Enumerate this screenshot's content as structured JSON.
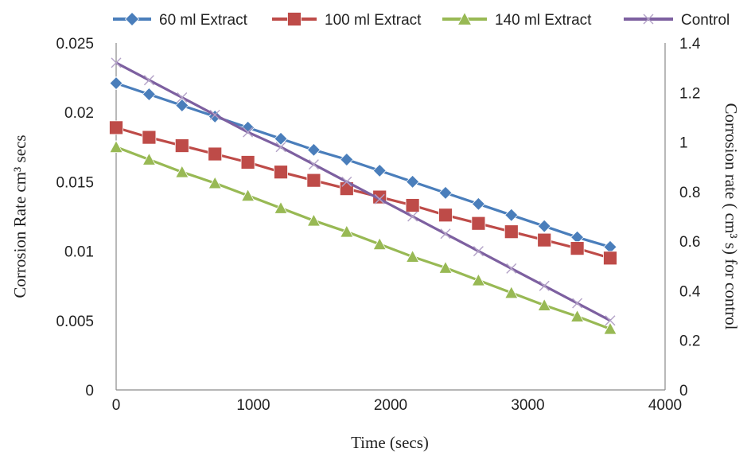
{
  "chart_data": {
    "type": "line",
    "title": "",
    "xlabel": "Time (secs)",
    "ylabel": "Corrosion Rate cm³ secs",
    "y2label": "Corrosion rate ( cm³  s)  for control",
    "xlim": [
      0,
      4000
    ],
    "ylim": [
      0,
      0.025
    ],
    "y2lim": [
      0,
      1.4
    ],
    "x_ticks": [
      "0",
      "1000",
      "2000",
      "3000",
      "4000"
    ],
    "y_ticks": [
      "0",
      "0.005",
      "0.01",
      "0.015",
      "0.02",
      "0.025"
    ],
    "y2_ticks": [
      "0",
      "0.2",
      "0.4",
      "0.6",
      "0.8",
      "1",
      "1.2",
      "1.4"
    ],
    "grid": false,
    "legend_position": "top",
    "x": [
      0,
      240,
      480,
      720,
      960,
      1200,
      1440,
      1680,
      1920,
      2160,
      2400,
      2640,
      2880,
      3120,
      3360,
      3600
    ],
    "series": [
      {
        "name": "60 ml Extract",
        "axis": "left",
        "color": "#4a7ebb",
        "marker": "diamond",
        "values": [
          0.0221,
          0.0213,
          0.0205,
          0.0197,
          0.0189,
          0.0181,
          0.0173,
          0.0166,
          0.0158,
          0.015,
          0.0142,
          0.0134,
          0.0126,
          0.0118,
          0.011,
          0.0103
        ]
      },
      {
        "name": "100 ml Extract",
        "axis": "left",
        "color": "#be4b48",
        "marker": "square",
        "values": [
          0.0189,
          0.0182,
          0.0176,
          0.017,
          0.0164,
          0.0157,
          0.0151,
          0.0145,
          0.0139,
          0.0133,
          0.0126,
          0.012,
          0.0114,
          0.0108,
          0.0102,
          0.0095
        ]
      },
      {
        "name": "140 ml Extract",
        "axis": "left",
        "color": "#98b954",
        "marker": "triangle",
        "values": [
          0.0175,
          0.0166,
          0.0157,
          0.0149,
          0.014,
          0.0131,
          0.0122,
          0.0114,
          0.0105,
          0.0096,
          0.0088,
          0.0079,
          0.007,
          0.0061,
          0.0053,
          0.0044
        ]
      },
      {
        "name": "Control",
        "axis": "right",
        "color": "#7d60a0",
        "marker": "x",
        "values": [
          1.32,
          1.25,
          1.18,
          1.11,
          1.04,
          0.98,
          0.91,
          0.84,
          0.77,
          0.7,
          0.63,
          0.56,
          0.49,
          0.42,
          0.35,
          0.28
        ]
      }
    ]
  }
}
